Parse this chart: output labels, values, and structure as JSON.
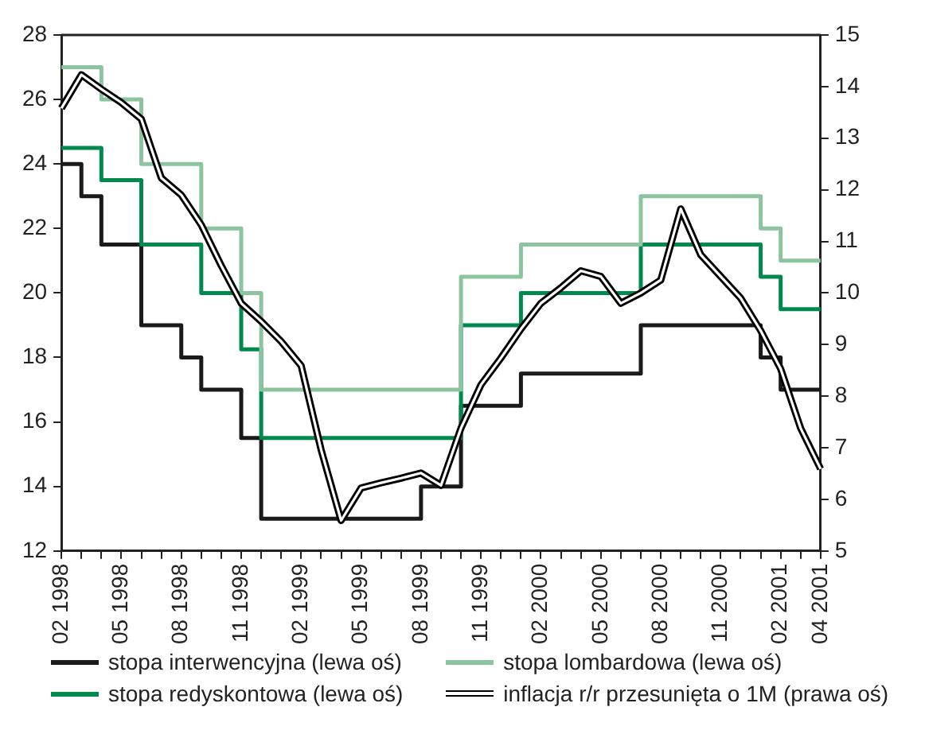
{
  "chart_data": {
    "type": "step",
    "categories": [
      "02 1998",
      null,
      null,
      "05 1998",
      null,
      null,
      "08 1998",
      null,
      null,
      "11 1998",
      null,
      null,
      "02 1999",
      null,
      null,
      "05 1999",
      null,
      null,
      "08 1999",
      null,
      null,
      "11 1999",
      null,
      null,
      "02 2000",
      null,
      null,
      "05 2000",
      null,
      null,
      "08 2000",
      null,
      null,
      "11 2000",
      null,
      null,
      "02 2001",
      null,
      "04 2001"
    ],
    "series": [
      {
        "name": "stopa interwencyjna (lewa oś)",
        "color": "#1a1a1a",
        "values": [
          24,
          24,
          23,
          21.5,
          21.5,
          19,
          19,
          18,
          17,
          17,
          15.5,
          13,
          13,
          13,
          13,
          13,
          13,
          13,
          13,
          14,
          14,
          16.5,
          16.5,
          16.5,
          17.5,
          17.5,
          17.5,
          17.5,
          17.5,
          17.5,
          19,
          19,
          19,
          19,
          19,
          19,
          18,
          17,
          17
        ]
      },
      {
        "name": "stopa redyskontowa (lewa oś)",
        "color": "#00894f",
        "values": [
          24.5,
          24.5,
          24.5,
          23.5,
          23.5,
          21.5,
          21.5,
          21.5,
          20,
          20,
          18.25,
          15.5,
          15.5,
          15.5,
          15.5,
          15.5,
          15.5,
          15.5,
          15.5,
          15.5,
          15.5,
          19,
          19,
          19,
          20,
          20,
          20,
          20,
          20,
          20,
          21.5,
          21.5,
          21.5,
          21.5,
          21.5,
          21.5,
          20.5,
          19.5,
          19.5
        ]
      },
      {
        "name": "stopa lombardowa (lewa oś)",
        "color": "#8cc4a0",
        "values": [
          27,
          27,
          27,
          26,
          26,
          24,
          24,
          24,
          22,
          22,
          20,
          17,
          17,
          17,
          17,
          17,
          17,
          17,
          17,
          17,
          17,
          20.5,
          20.5,
          20.5,
          21.5,
          21.5,
          21.5,
          21.5,
          21.5,
          21.5,
          23,
          23,
          23,
          23,
          23,
          23,
          22,
          21,
          21
        ]
      },
      {
        "name": "inflacja r/r przesunięta o 1M (prawa oś)",
        "type": "line",
        "axis": "y2",
        "color": "#000000",
        "values": [
          13.58,
          14.23,
          13.95,
          13.69,
          13.37,
          12.23,
          11.9,
          11.32,
          10.53,
          9.8,
          9.45,
          9.06,
          8.59,
          6.96,
          5.59,
          6.22,
          6.32,
          6.41,
          6.51,
          6.27,
          7.38,
          8.22,
          8.74,
          9.3,
          9.8,
          10.1,
          10.43,
          10.32,
          9.8,
          10.0,
          10.25,
          11.63,
          10.74,
          10.32,
          9.9,
          9.27,
          8.53,
          7.38,
          6.59
        ]
      }
    ],
    "ylim": [
      12,
      28
    ],
    "yticks": [
      12,
      14,
      16,
      18,
      20,
      22,
      24,
      26,
      28
    ],
    "y2lim": [
      5,
      15
    ],
    "y2ticks": [
      5,
      6,
      7,
      8,
      9,
      10,
      11,
      12,
      13,
      14,
      15
    ],
    "grid": false,
    "legend": "bottom"
  }
}
